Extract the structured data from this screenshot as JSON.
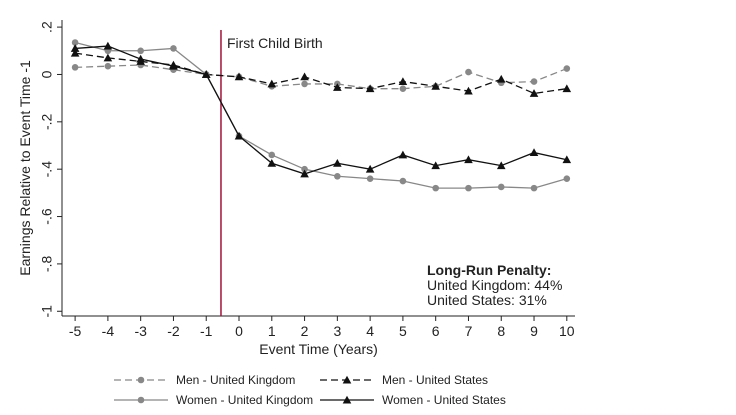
{
  "chart_data": {
    "type": "line",
    "xlabel": "Event Time (Years)",
    "ylabel": "Earnings Relative to Event Time -1",
    "x": [
      -5,
      -4,
      -3,
      -2,
      -1,
      0,
      1,
      2,
      3,
      4,
      5,
      6,
      7,
      8,
      9,
      10
    ],
    "x_ticks": [
      "-5",
      "-4",
      "-3",
      "-2",
      "-1",
      "0",
      "1",
      "2",
      "3",
      "4",
      "5",
      "6",
      "7",
      "8",
      "9",
      "10"
    ],
    "y_ticks": [
      ".2",
      "0",
      "-.2",
      "-.4",
      "-.6",
      "-.8",
      "-1"
    ],
    "xlim": [
      -5.4,
      10.25
    ],
    "ylim": [
      -1.02,
      0.23
    ],
    "grid": false,
    "event_label": "First Child Birth",
    "event_x": -0.55,
    "event_line_color": "#a3123a",
    "series": [
      {
        "name": "Men - United Kingdom",
        "color": "#888888",
        "dashed": true,
        "marker": "circle",
        "values": [
          0.03,
          0.035,
          0.04,
          0.02,
          0.0,
          -0.01,
          -0.05,
          -0.04,
          -0.04,
          -0.06,
          -0.06,
          -0.05,
          0.01,
          -0.035,
          -0.03,
          0.025
        ]
      },
      {
        "name": "Men - United States",
        "color": "#111111",
        "dashed": true,
        "marker": "triangle",
        "values": [
          0.09,
          0.07,
          0.055,
          0.04,
          0.0,
          -0.01,
          -0.04,
          -0.01,
          -0.055,
          -0.06,
          -0.03,
          -0.05,
          -0.07,
          -0.02,
          -0.08,
          -0.06
        ]
      },
      {
        "name": "Women - United Kingdom",
        "color": "#888888",
        "dashed": false,
        "marker": "circle",
        "values": [
          0.135,
          0.1,
          0.1,
          0.11,
          0.0,
          -0.26,
          -0.34,
          -0.4,
          -0.43,
          -0.44,
          -0.45,
          -0.48,
          -0.48,
          -0.475,
          -0.48,
          -0.44
        ]
      },
      {
        "name": "Women - United States",
        "color": "#111111",
        "dashed": false,
        "marker": "triangle",
        "values": [
          0.11,
          0.12,
          0.065,
          0.035,
          0.0,
          -0.26,
          -0.375,
          -0.42,
          -0.375,
          -0.4,
          -0.34,
          -0.385,
          -0.36,
          -0.385,
          -0.33,
          -0.36
        ]
      }
    ],
    "annotation": {
      "title": "Long-Run Penalty:",
      "lines": [
        "United Kingdom:  44%",
        "United States:  31%"
      ]
    }
  }
}
